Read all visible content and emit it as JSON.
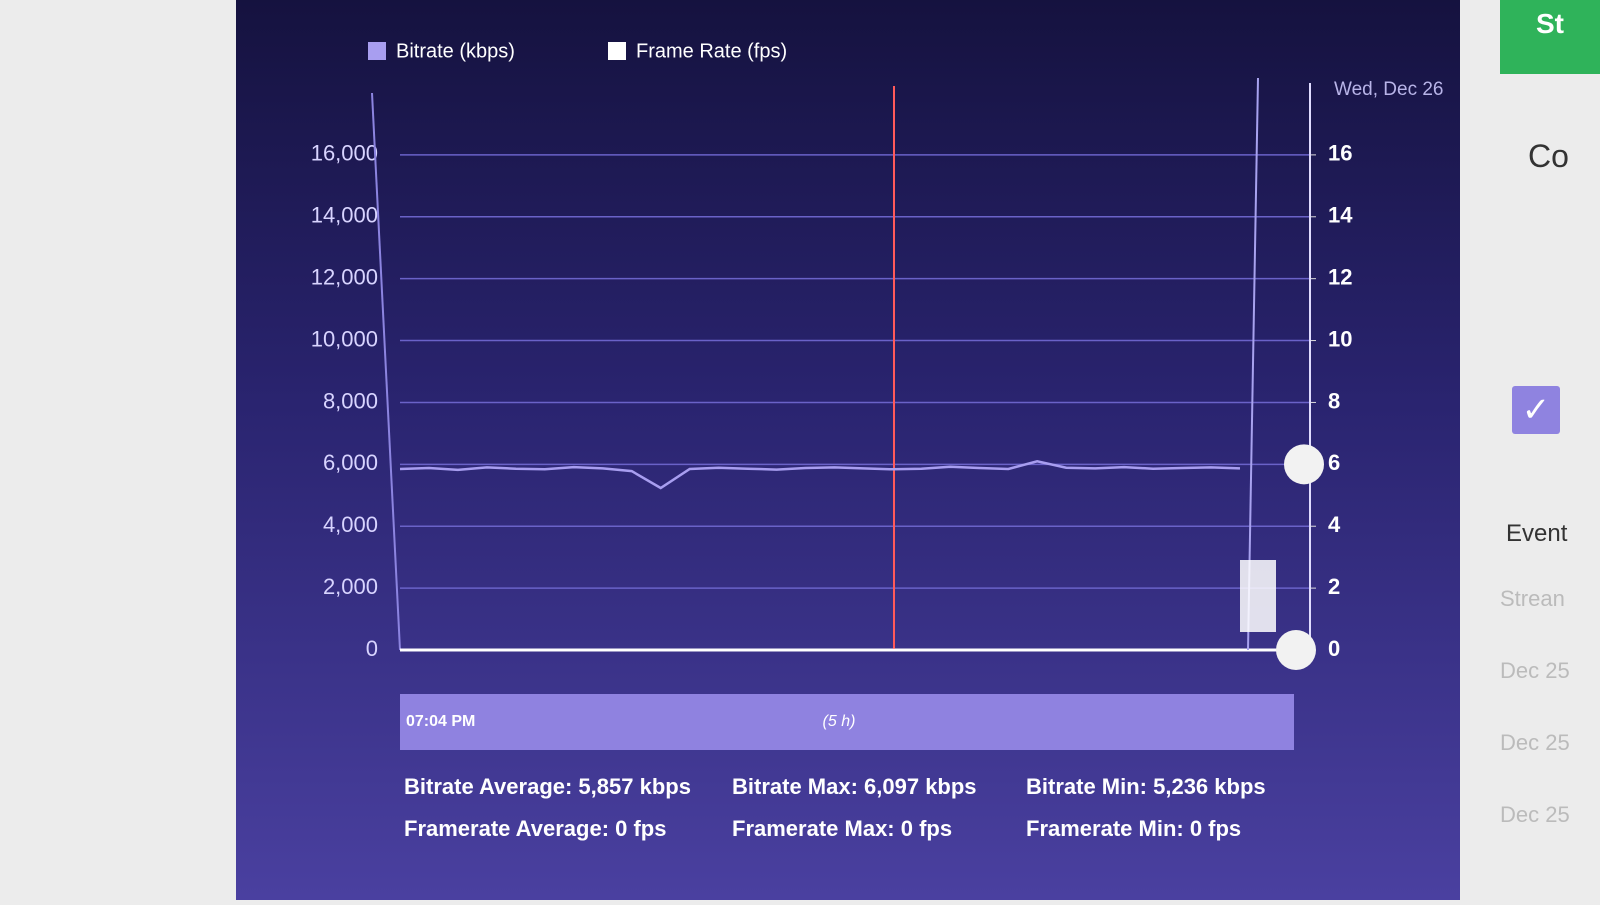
{
  "chart_data": {
    "type": "line",
    "categories": [
      null,
      null,
      null,
      null,
      null,
      null,
      null,
      null,
      null,
      null,
      null,
      null,
      null,
      null,
      null,
      null,
      null,
      null,
      null,
      null,
      null,
      null,
      null,
      null,
      null,
      null,
      null,
      null,
      null,
      null
    ],
    "series": [
      {
        "name": "Bitrate (kbps)",
        "color": "#a89ef0",
        "axis": "y",
        "values": [
          5850,
          5880,
          5820,
          5900,
          5860,
          5840,
          5910,
          5870,
          5780,
          5236,
          5850,
          5890,
          5860,
          5830,
          5880,
          5900,
          5870,
          5840,
          5860,
          5920,
          5880,
          5850,
          6097,
          5890,
          5870,
          5910,
          5860,
          5880,
          5900,
          5870
        ]
      },
      {
        "name": "Frame Rate (fps)",
        "color": "#ffffff",
        "axis": "y2",
        "values": [
          0,
          0,
          0,
          0,
          0,
          0,
          0,
          0,
          0,
          0,
          0,
          0,
          0,
          0,
          0,
          0,
          0,
          0,
          0,
          0,
          0,
          0,
          0,
          0,
          0,
          0,
          0,
          0,
          0,
          0
        ]
      }
    ],
    "ylim": [
      0,
      18000
    ],
    "yticks": [
      0,
      {
        "value": 2000,
        "label": "2,000"
      },
      {
        "value": 4000,
        "label": "4,000"
      },
      {
        "value": 6000,
        "label": "6,000"
      },
      {
        "value": 8000,
        "label": "8,000"
      },
      {
        "value": 10000,
        "label": "10,000"
      },
      {
        "value": 12000,
        "label": "12,000"
      },
      {
        "value": 14000,
        "label": "14,000"
      },
      {
        "value": 16000,
        "label": "16,000"
      }
    ],
    "y2lim": [
      0,
      18
    ],
    "y2ticks": [
      0,
      2,
      4,
      6,
      8,
      10,
      12,
      14,
      16
    ],
    "grid": true,
    "legend": "top",
    "date_label": "Wed, Dec 26",
    "navigator": {
      "start": "07:04 PM",
      "span": "(5 h)"
    },
    "stats": [
      [
        "Bitrate Average: 5,857 kbps",
        "Bitrate Max: 6,097 kbps",
        "Bitrate Min: 5,236 kbps"
      ],
      [
        "Framerate Average: 0 fps",
        "Framerate Max: 0 fps",
        "Framerate Min: 0 fps"
      ]
    ]
  },
  "sidebar": {
    "button": "St",
    "heading": "Co",
    "events_title": "Event",
    "events": [
      "Strean",
      "Dec 25",
      "Dec 25",
      "Dec 25"
    ]
  }
}
